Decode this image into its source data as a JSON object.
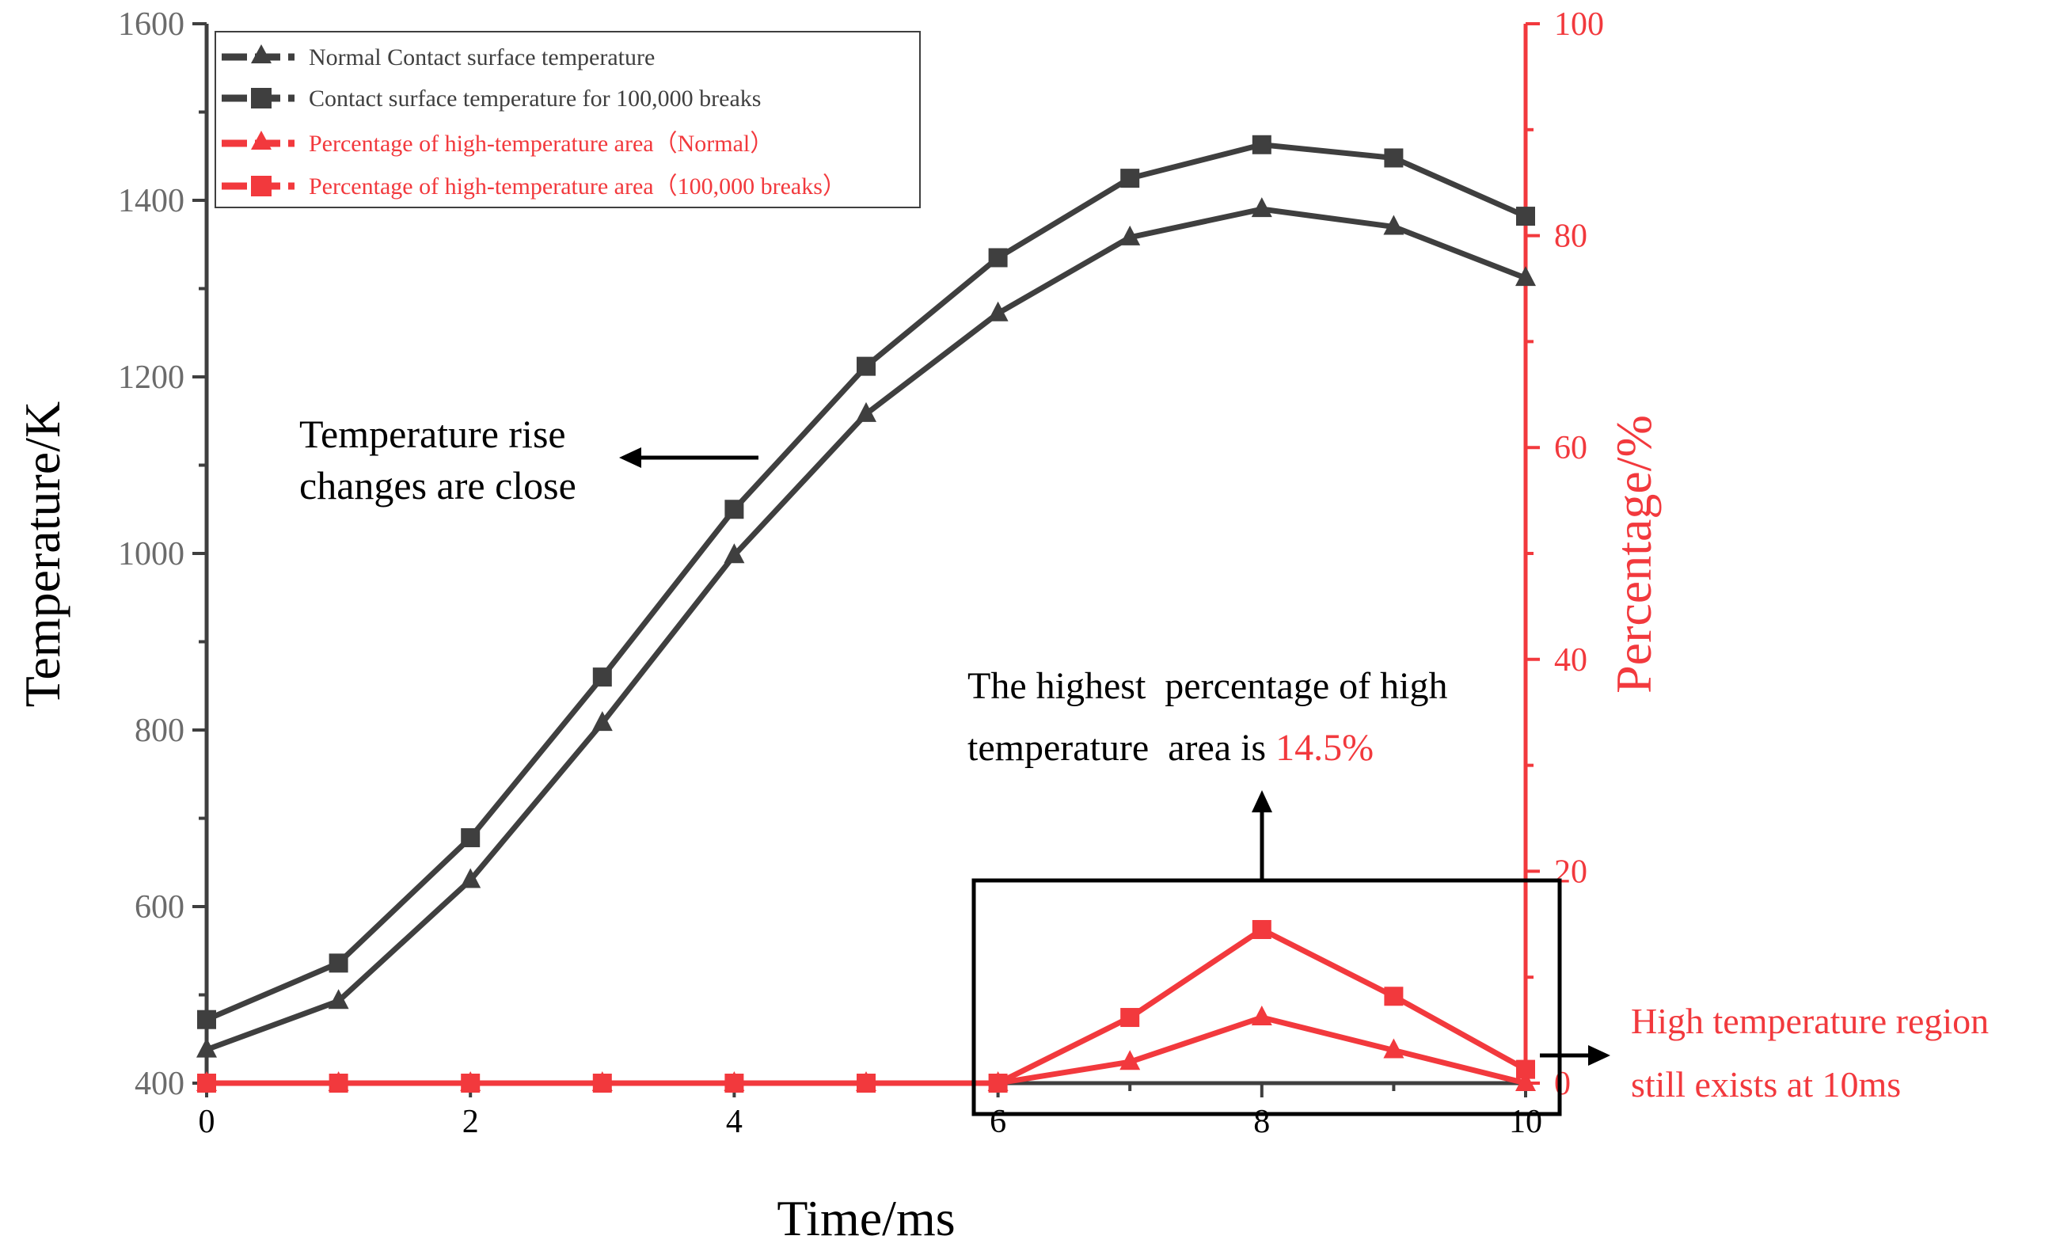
{
  "colors": {
    "dark": "#3f3f3f",
    "red": "#f2393d",
    "tick_gray": "#6b6b6b",
    "black": "#000000",
    "highlight": "#f2393d"
  },
  "chart_data": {
    "type": "line",
    "x": [
      0,
      1,
      2,
      3,
      4,
      5,
      6,
      7,
      8,
      9,
      10
    ],
    "xlabel": "Time/ms",
    "ylabel_left": "Temperature/K",
    "ylabel_right": "Percentage/%",
    "xlim": [
      0,
      10
    ],
    "ylim_left": [
      400,
      1600
    ],
    "ylim_right": [
      0,
      100
    ],
    "x_ticks": [
      0,
      2,
      4,
      6,
      8,
      10
    ],
    "y_left_ticks": [
      400,
      600,
      800,
      1000,
      1200,
      1400,
      1600
    ],
    "y_right_ticks": [
      0,
      20,
      40,
      60,
      80,
      100
    ],
    "grid": false,
    "legend_position": "top-left",
    "series": [
      {
        "name": "Normal Contact surface temperature",
        "axis": "left",
        "marker": "triangle",
        "color": "#3f3f3f",
        "values": [
          438,
          493,
          630,
          808,
          998,
          1158,
          1272,
          1358,
          1390,
          1370,
          1312
        ]
      },
      {
        "name": "Contact surface temperature for 100,000 breaks",
        "axis": "left",
        "marker": "square",
        "color": "#3f3f3f",
        "values": [
          472,
          536,
          678,
          860,
          1050,
          1212,
          1335,
          1425,
          1463,
          1448,
          1382
        ]
      },
      {
        "name": "Percentage of high-temperature area（Normal）",
        "axis": "right",
        "marker": "triangle",
        "color": "#f2393d",
        "values": [
          0,
          0,
          0,
          0,
          0,
          0,
          0,
          2,
          6.2,
          3.1,
          0
        ]
      },
      {
        "name": "Percentage of high-temperature area（100,000 breaks）",
        "axis": "right",
        "marker": "square",
        "color": "#f2393d",
        "values": [
          0,
          0,
          0,
          0,
          0,
          0,
          0,
          6.2,
          14.5,
          8.2,
          1.3
        ]
      }
    ],
    "annotations": {
      "temp_rise_line1": "Temperature rise",
      "temp_rise_line2": "changes are close",
      "highest_line1": "The highest  percentage of high",
      "highest_line2_prefix": "temperature  area is ",
      "highest_value": "14.5%",
      "region_line1": "High temperature region",
      "region_line2": "still exists at 10ms"
    }
  }
}
